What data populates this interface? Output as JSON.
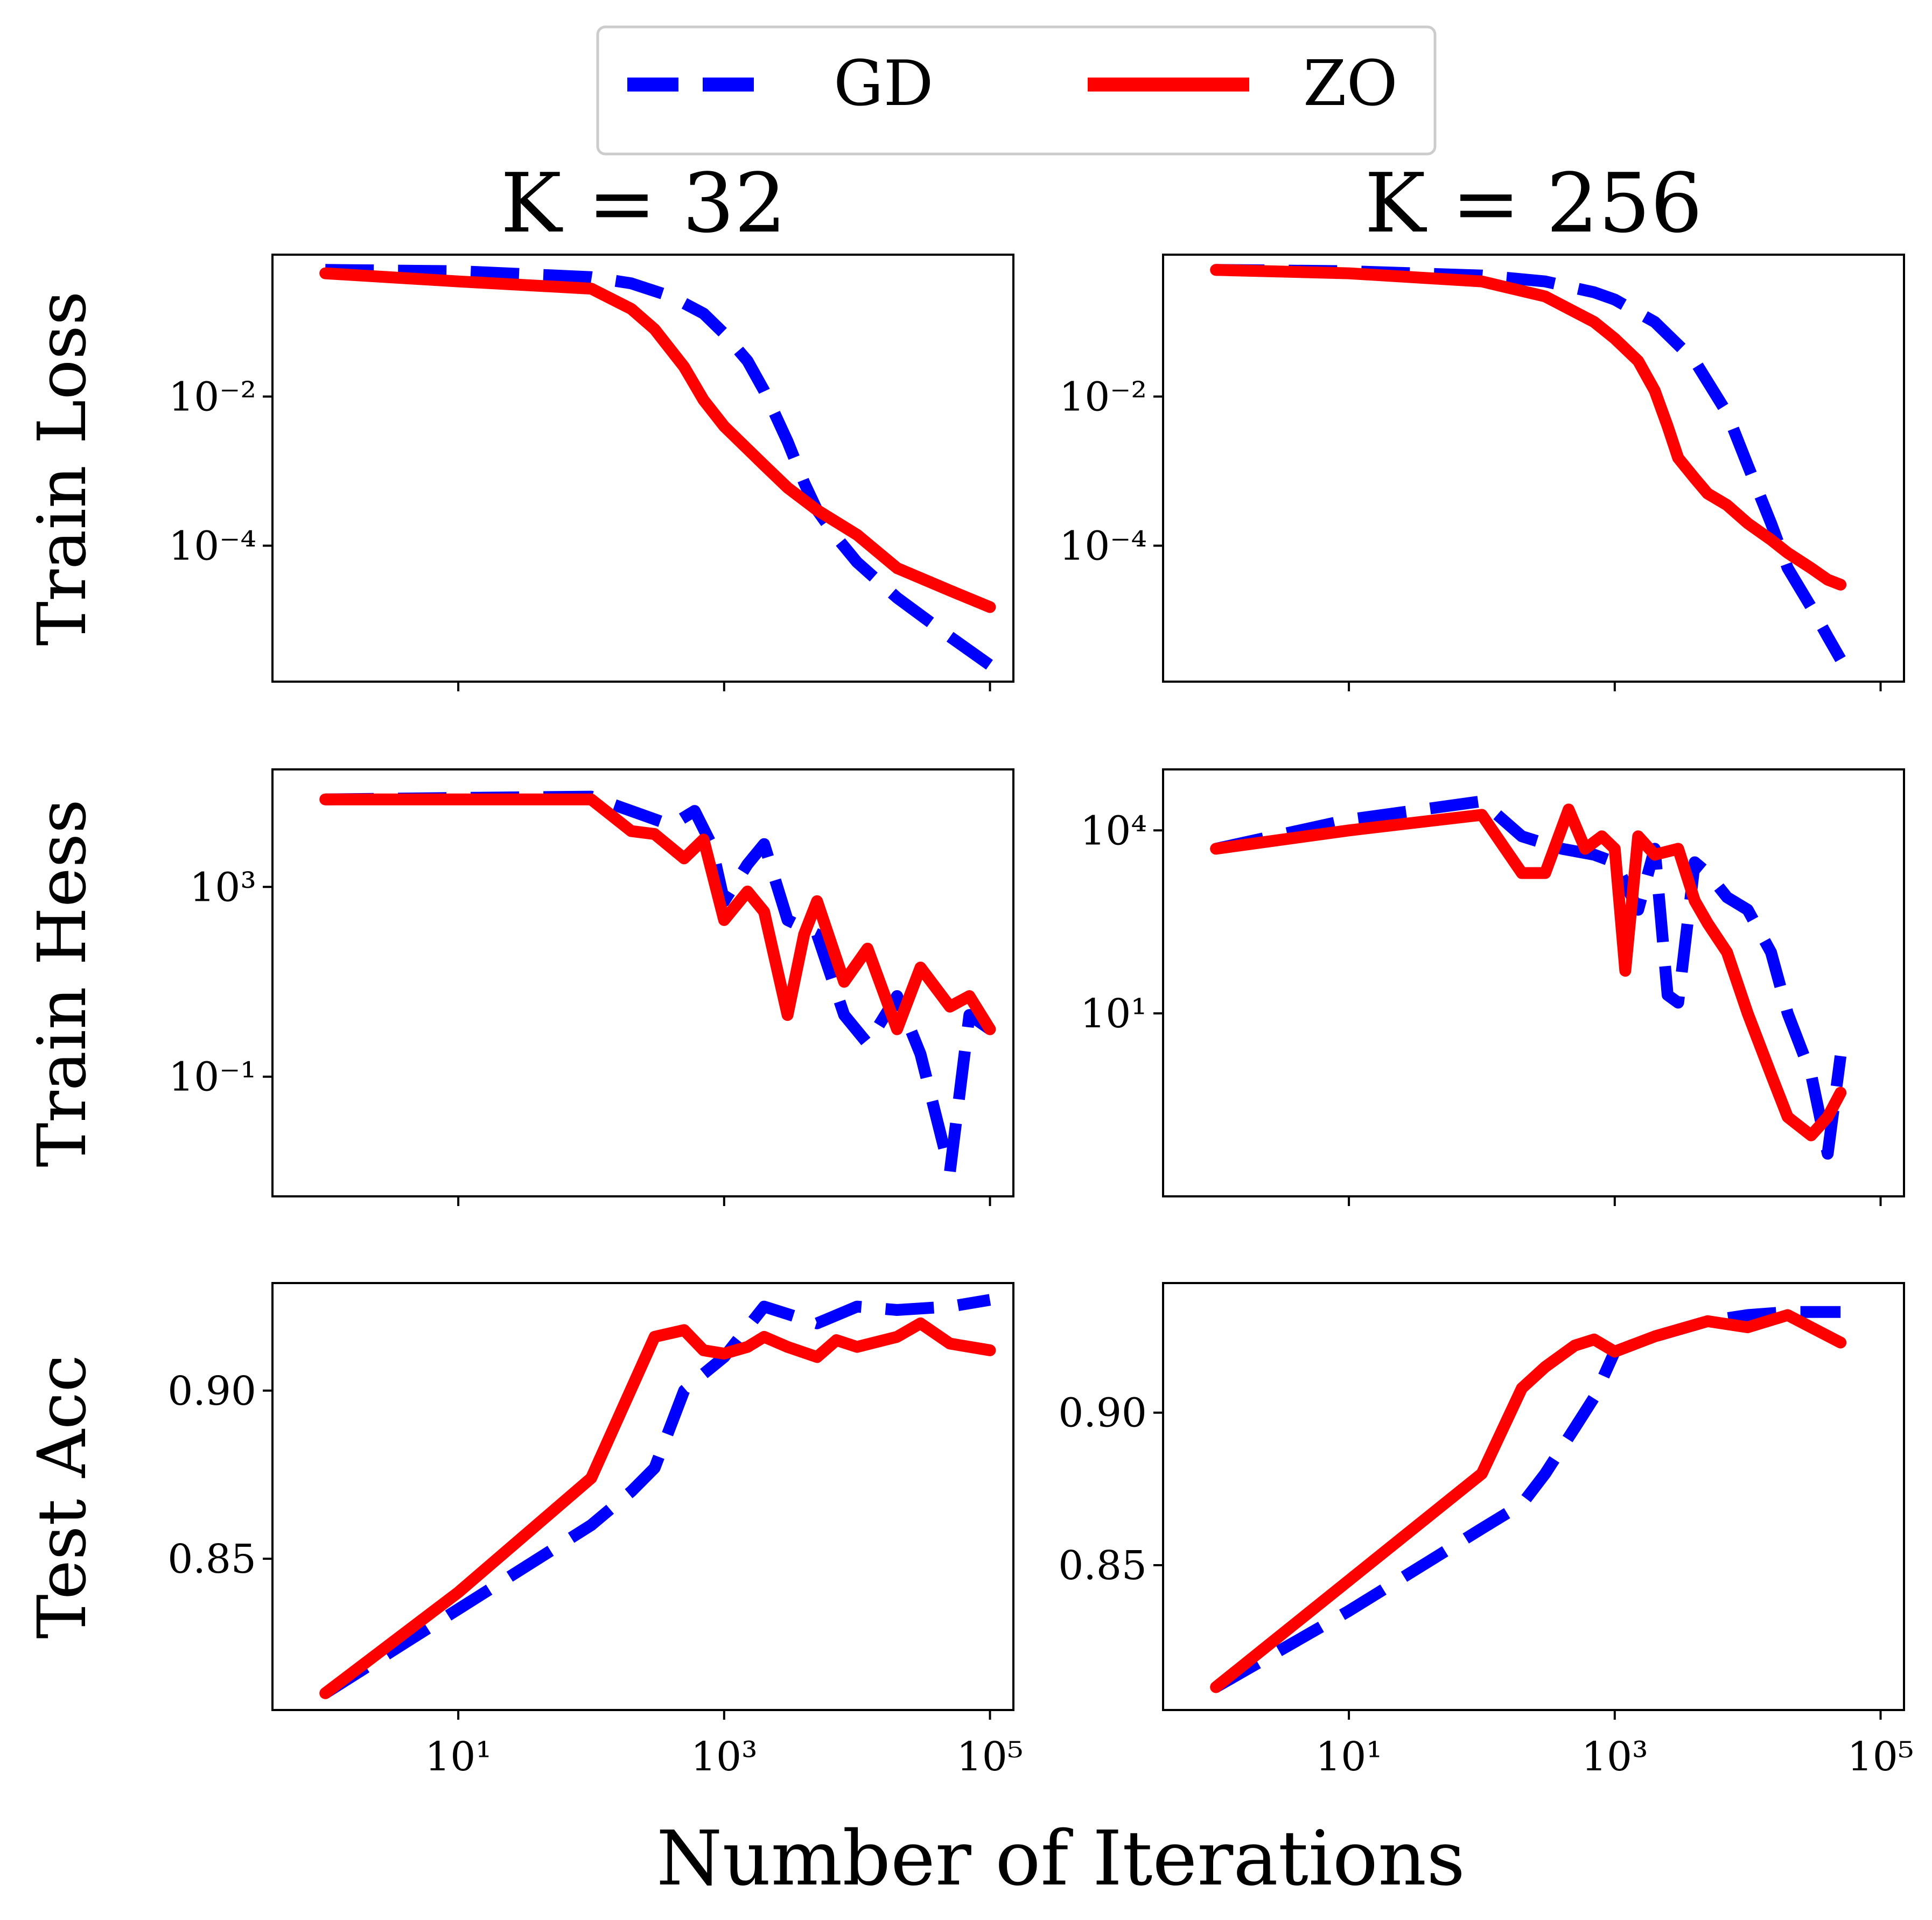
{
  "colors": {
    "GD": "#0000ff",
    "ZO": "#ff0000",
    "frame": "#000000",
    "legend_border": "#cccccc"
  },
  "legend": {
    "placement": "top-center",
    "entries": [
      {
        "name": "GD",
        "style": "dashed",
        "color": "#0000ff"
      },
      {
        "name": "ZO",
        "style": "solid",
        "color": "#ff0000"
      }
    ]
  },
  "col_titles": [
    "K = 32",
    "K = 256"
  ],
  "row_labels": [
    "Train Loss",
    "Train Hess",
    "Test Acc"
  ],
  "xlabel": "Number of Iterations",
  "chart_data": [
    {
      "type": "line",
      "panel": "K=32 / Train Loss",
      "title": "K = 32",
      "ylabel": "Train Loss",
      "xscale": "log",
      "yscale": "log",
      "xlim": [
        0.4,
        150000
      ],
      "ylim": [
        1.5e-06,
        0.8
      ],
      "xticks": [
        {
          "label": "10¹",
          "value": 10
        },
        {
          "label": "10³",
          "value": 1000
        },
        {
          "label": "10⁵",
          "value": 100000
        }
      ],
      "yticks": [
        {
          "label": "10⁻²",
          "value": 0.01
        },
        {
          "label": "10⁻⁴",
          "value": 0.0001
        }
      ],
      "series": [
        {
          "name": "GD",
          "x": [
            1,
            10,
            100,
            200,
            400,
            700,
            1000,
            1500,
            2000,
            3000,
            4000,
            5000,
            7000,
            10000,
            20000,
            50000,
            100000
          ],
          "y": [
            0.5,
            0.48,
            0.4,
            0.33,
            0.22,
            0.13,
            0.07,
            0.03,
            0.012,
            0.0025,
            0.0007,
            0.0003,
            0.00013,
            6e-05,
            2e-05,
            6e-06,
            2.5e-06
          ]
        },
        {
          "name": "ZO",
          "x": [
            1,
            10,
            100,
            200,
            300,
            500,
            700,
            1000,
            2000,
            3000,
            5000,
            10000,
            20000,
            50000,
            100000
          ],
          "y": [
            0.45,
            0.35,
            0.28,
            0.15,
            0.08,
            0.025,
            0.009,
            0.004,
            0.0012,
            0.0006,
            0.0003,
            0.00014,
            5e-05,
            2.5e-05,
            1.5e-05
          ]
        }
      ]
    },
    {
      "type": "line",
      "panel": "K=256 / Train Loss",
      "title": "K = 256",
      "ylabel": "",
      "xscale": "log",
      "yscale": "log",
      "xlim": [
        0.4,
        150000
      ],
      "ylim": [
        1.5e-06,
        0.8
      ],
      "xticks": [
        {
          "label": "10¹",
          "value": 10
        },
        {
          "label": "10³",
          "value": 1000
        },
        {
          "label": "10⁵",
          "value": 100000
        }
      ],
      "yticks": [
        {
          "label": "10⁻²",
          "value": 0.01
        },
        {
          "label": "10⁻⁴",
          "value": 0.0001
        }
      ],
      "series": [
        {
          "name": "GD",
          "x": [
            1,
            10,
            100,
            300,
            700,
            1000,
            2000,
            4000,
            7000,
            10000,
            15000,
            20000,
            30000,
            40000,
            50000
          ],
          "y": [
            0.5,
            0.48,
            0.42,
            0.35,
            0.25,
            0.2,
            0.1,
            0.03,
            0.006,
            0.0012,
            0.0002,
            5e-05,
            1.5e-05,
            6e-06,
            3e-06
          ]
        },
        {
          "name": "ZO",
          "x": [
            1,
            10,
            100,
            300,
            700,
            1000,
            1500,
            2000,
            2500,
            3000,
            4000,
            5000,
            7000,
            10000,
            15000,
            20000,
            30000,
            40000,
            50000
          ],
          "y": [
            0.5,
            0.45,
            0.35,
            0.22,
            0.1,
            0.06,
            0.03,
            0.012,
            0.004,
            0.0015,
            0.0008,
            0.0005,
            0.00035,
            0.0002,
            0.00012,
            8e-05,
            5e-05,
            3.5e-05,
            3e-05
          ]
        }
      ]
    },
    {
      "type": "line",
      "panel": "K=32 / Train Hess",
      "title": "",
      "ylabel": "Train Hess",
      "xscale": "log",
      "yscale": "log",
      "xlim": [
        0.4,
        150000
      ],
      "ylim": [
        0.0003,
        300000
      ],
      "xticks": [
        {
          "label": "10¹",
          "value": 10
        },
        {
          "label": "10³",
          "value": 1000
        },
        {
          "label": "10⁵",
          "value": 100000
        }
      ],
      "yticks": [
        {
          "label": "10³",
          "value": 1000
        },
        {
          "label": "10⁻¹",
          "value": 0.1
        }
      ],
      "series": [
        {
          "name": "GD",
          "x": [
            1,
            10,
            100,
            200,
            400,
            600,
            800,
            1000,
            1500,
            2000,
            3000,
            5000,
            8000,
            12000,
            20000,
            30000,
            50000,
            70000,
            100000
          ],
          "y": [
            70000,
            75000,
            80000,
            40000,
            20000,
            40000,
            8000,
            500,
            3000,
            8000,
            200,
            100,
            2,
            0.5,
            5,
            0.3,
            0.001,
            2,
            1
          ]
        },
        {
          "name": "ZO",
          "x": [
            1,
            10,
            100,
            200,
            300,
            500,
            700,
            1000,
            1500,
            2000,
            3000,
            4000,
            5000,
            8000,
            12000,
            20000,
            30000,
            50000,
            70000,
            100000
          ],
          "y": [
            70000,
            70000,
            70000,
            15000,
            13000,
            4000,
            10000,
            200,
            800,
            300,
            2,
            100,
            500,
            10,
            50,
            1,
            20,
            3,
            5,
            1
          ]
        }
      ]
    },
    {
      "type": "line",
      "panel": "K=256 / Train Hess",
      "title": "",
      "ylabel": "",
      "xscale": "log",
      "yscale": "log",
      "xlim": [
        0.4,
        150000
      ],
      "ylim": [
        0.01,
        100000
      ],
      "xticks": [
        {
          "label": "10¹",
          "value": 10
        },
        {
          "label": "10³",
          "value": 1000
        },
        {
          "label": "10⁵",
          "value": 100000
        }
      ],
      "yticks": [
        {
          "label": "10⁴",
          "value": 10000
        },
        {
          "label": "10¹",
          "value": 10
        }
      ],
      "series": [
        {
          "name": "GD",
          "x": [
            1,
            10,
            100,
            200,
            400,
            700,
            1000,
            1500,
            2000,
            2500,
            3000,
            4000,
            5000,
            7000,
            10000,
            15000,
            20000,
            30000,
            40000,
            50000
          ],
          "y": [
            5000,
            15000,
            30000,
            8000,
            5000,
            4000,
            3000,
            500,
            5000,
            20,
            15,
            3000,
            2000,
            800,
            500,
            100,
            10,
            1,
            0.05,
            2
          ]
        },
        {
          "name": "ZO",
          "x": [
            1,
            10,
            100,
            200,
            300,
            450,
            600,
            800,
            1000,
            1200,
            1500,
            2000,
            3000,
            4000,
            5000,
            7000,
            10000,
            15000,
            20000,
            30000,
            40000,
            50000
          ],
          "y": [
            5000,
            10000,
            18000,
            2000,
            2000,
            22000,
            5000,
            8000,
            5000,
            50,
            8000,
            4000,
            5000,
            700,
            300,
            100,
            10,
            1,
            0.2,
            0.1,
            0.2,
            0.5
          ]
        }
      ]
    },
    {
      "type": "line",
      "panel": "K=32 / Test Acc",
      "title": "",
      "ylabel": "Test Acc",
      "xscale": "log",
      "yscale": "linear",
      "xlim": [
        0.4,
        150000
      ],
      "ylim": [
        0.805,
        0.932
      ],
      "xticks": [
        {
          "label": "10¹",
          "value": 10
        },
        {
          "label": "10³",
          "value": 1000
        },
        {
          "label": "10⁵",
          "value": 100000
        }
      ],
      "yticks": [
        {
          "label": "0.90",
          "value": 0.9
        },
        {
          "label": "0.85",
          "value": 0.85
        }
      ],
      "series": [
        {
          "name": "GD",
          "x": [
            1,
            10,
            100,
            200,
            300,
            500,
            700,
            1000,
            2000,
            5000,
            10000,
            20000,
            50000,
            100000
          ],
          "y": [
            0.81,
            0.835,
            0.86,
            0.87,
            0.877,
            0.9,
            0.905,
            0.91,
            0.925,
            0.92,
            0.925,
            0.924,
            0.925,
            0.927
          ]
        },
        {
          "name": "ZO",
          "x": [
            1,
            10,
            100,
            300,
            500,
            700,
            1000,
            1500,
            2000,
            3000,
            5000,
            7000,
            10000,
            20000,
            30000,
            50000,
            100000
          ],
          "y": [
            0.81,
            0.84,
            0.874,
            0.916,
            0.918,
            0.912,
            0.911,
            0.913,
            0.916,
            0.913,
            0.91,
            0.915,
            0.913,
            0.916,
            0.92,
            0.914,
            0.912
          ]
        }
      ]
    },
    {
      "type": "line",
      "panel": "K=256 / Test Acc",
      "title": "",
      "ylabel": "",
      "xscale": "log",
      "yscale": "linear",
      "xlim": [
        0.4,
        150000
      ],
      "ylim": [
        0.8025,
        0.9425
      ],
      "xticks": [
        {
          "label": "10¹",
          "value": 10
        },
        {
          "label": "10³",
          "value": 1000
        },
        {
          "label": "10⁵",
          "value": 100000
        }
      ],
      "yticks": [
        {
          "label": "0.90",
          "value": 0.9
        },
        {
          "label": "0.85",
          "value": 0.85
        }
      ],
      "series": [
        {
          "name": "GD",
          "x": [
            1,
            10,
            100,
            200,
            300,
            500,
            700,
            1000,
            2000,
            5000,
            10000,
            20000,
            50000
          ],
          "y": [
            0.81,
            0.835,
            0.862,
            0.87,
            0.88,
            0.895,
            0.905,
            0.92,
            0.925,
            0.93,
            0.932,
            0.933,
            0.933
          ]
        },
        {
          "name": "ZO",
          "x": [
            1,
            10,
            100,
            200,
            300,
            500,
            700,
            1000,
            2000,
            5000,
            10000,
            20000,
            30000,
            50000
          ],
          "y": [
            0.81,
            0.845,
            0.88,
            0.908,
            0.915,
            0.922,
            0.924,
            0.92,
            0.925,
            0.93,
            0.928,
            0.932,
            0.928,
            0.923
          ]
        }
      ]
    }
  ]
}
